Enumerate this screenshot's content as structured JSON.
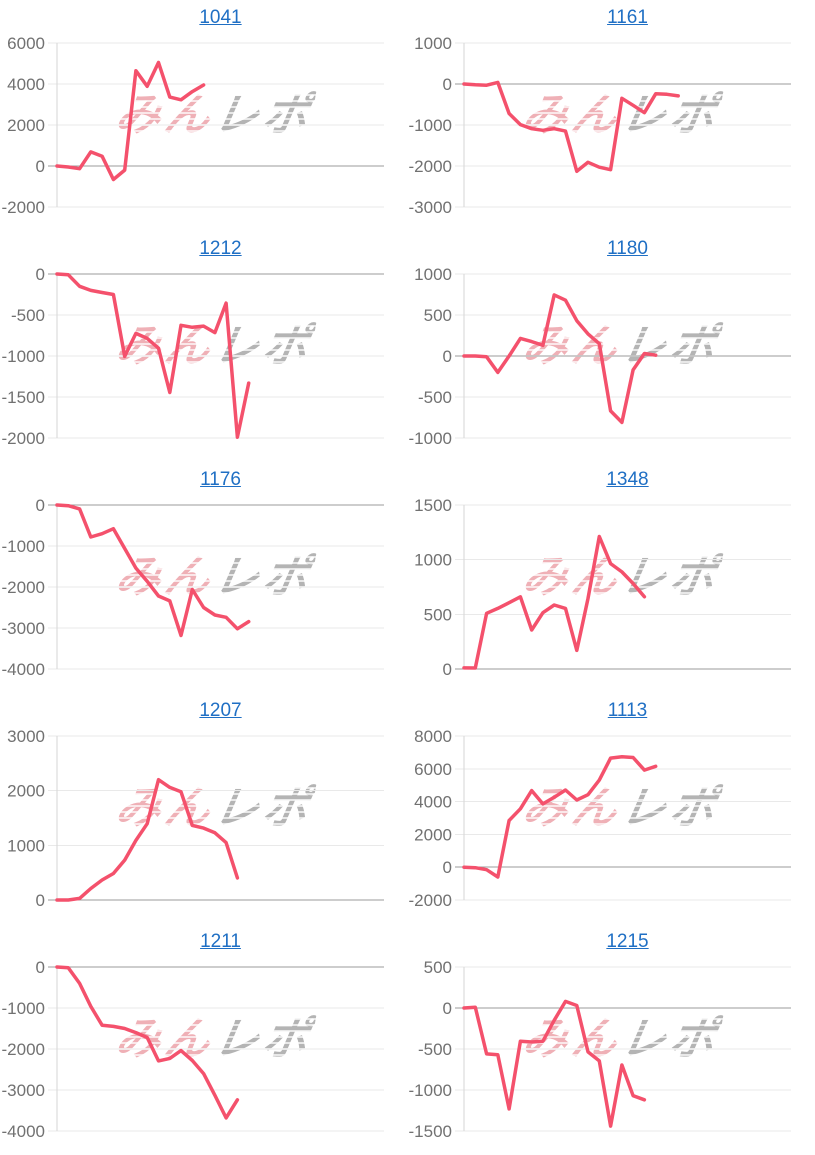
{
  "watermark": {
    "pink": "みん",
    "gray": "レポ"
  },
  "colors": {
    "background": "#ffffff",
    "line": "#f4516c",
    "title_link": "#1f6fc4",
    "grid_line": "#e9e9e9",
    "zero_line": "#9b9b9b",
    "axis_line": "#d6d6d6",
    "tick_label": "#717171",
    "watermark_pink": "#efb0b6",
    "watermark_gray": "#b4b4b4"
  },
  "chart_data": [
    {
      "type": "line",
      "title": "1041",
      "title_is_link": true,
      "grid": true,
      "legend": "none",
      "xlabel": "",
      "ylabel": "",
      "x_slots": 30,
      "ylim": [
        -2000,
        6000
      ],
      "y_ticks": [
        6000,
        4000,
        2000,
        0,
        -2000
      ],
      "values": [
        0,
        -50,
        -130,
        690,
        480,
        -660,
        -200,
        4650,
        3890,
        5050,
        3360,
        3230,
        3630,
        3950
      ]
    },
    {
      "type": "line",
      "title": "1161",
      "title_is_link": true,
      "grid": true,
      "legend": "none",
      "xlabel": "",
      "ylabel": "",
      "x_slots": 30,
      "ylim": [
        -3000,
        1000
      ],
      "y_ticks": [
        1000,
        0,
        -1000,
        -2000,
        -3000
      ],
      "values": [
        0,
        -20,
        -30,
        40,
        -720,
        -990,
        -1090,
        -1130,
        -1090,
        -1150,
        -2130,
        -1910,
        -2030,
        -2090,
        -350,
        -520,
        -700,
        -240,
        -250,
        -290
      ]
    },
    {
      "type": "line",
      "title": "1212",
      "title_is_link": true,
      "grid": true,
      "legend": "none",
      "xlabel": "",
      "ylabel": "",
      "x_slots": 30,
      "ylim": [
        -2000,
        0
      ],
      "y_ticks": [
        0,
        -500,
        -1000,
        -1500,
        -2000
      ],
      "values": [
        0,
        -10,
        -150,
        -200,
        -225,
        -250,
        -1005,
        -725,
        -785,
        -905,
        -1445,
        -625,
        -650,
        -635,
        -715,
        -355,
        -1990,
        -1330
      ]
    },
    {
      "type": "line",
      "title": "1180",
      "title_is_link": true,
      "grid": true,
      "legend": "none",
      "xlabel": "",
      "ylabel": "",
      "x_slots": 30,
      "ylim": [
        -1000,
        1000
      ],
      "y_ticks": [
        1000,
        500,
        0,
        -500,
        -1000
      ],
      "values": [
        0,
        0,
        -10,
        -200,
        0,
        215,
        175,
        130,
        745,
        680,
        430,
        270,
        150,
        -670,
        -810,
        -170,
        30,
        10
      ]
    },
    {
      "type": "line",
      "title": "1176",
      "title_is_link": true,
      "grid": true,
      "legend": "none",
      "xlabel": "",
      "ylabel": "",
      "x_slots": 30,
      "ylim": [
        -4000,
        0
      ],
      "y_ticks": [
        0,
        -1000,
        -2000,
        -3000,
        -4000
      ],
      "values": [
        0,
        -16,
        -96,
        -780,
        -700,
        -577,
        -1060,
        -1540,
        -1860,
        -2220,
        -2340,
        -3180,
        -2060,
        -2500,
        -2684,
        -2740,
        -3020,
        -2845
      ]
    },
    {
      "type": "line",
      "title": "1348",
      "title_is_link": true,
      "grid": true,
      "legend": "none",
      "xlabel": "",
      "ylabel": "",
      "x_slots": 30,
      "ylim": [
        0,
        1500
      ],
      "y_ticks": [
        1500,
        1000,
        500,
        0
      ],
      "values": [
        10,
        9,
        509,
        554,
        606,
        660,
        357,
        515,
        585,
        554,
        170,
        645,
        1212,
        964,
        888,
        782,
        660
      ]
    },
    {
      "type": "line",
      "title": "1207",
      "title_is_link": true,
      "grid": true,
      "legend": "none",
      "xlabel": "",
      "ylabel": "",
      "x_slots": 30,
      "ylim": [
        0,
        3000
      ],
      "y_ticks": [
        3000,
        2000,
        1000,
        0
      ],
      "values": [
        0,
        0,
        30,
        210,
        365,
        485,
        730,
        1090,
        1395,
        2200,
        2060,
        1980,
        1365,
        1315,
        1230,
        1050,
        405
      ]
    },
    {
      "type": "line",
      "title": "1113",
      "title_is_link": true,
      "grid": true,
      "legend": "none",
      "xlabel": "",
      "ylabel": "",
      "x_slots": 30,
      "ylim": [
        -2000,
        8000
      ],
      "y_ticks": [
        8000,
        6000,
        4000,
        2000,
        0,
        -2000
      ],
      "values": [
        0,
        -30,
        -150,
        -600,
        2850,
        3560,
        4670,
        3860,
        4260,
        4710,
        4100,
        4420,
        5310,
        6650,
        6730,
        6690,
        5920,
        6150
      ]
    },
    {
      "type": "line",
      "title": "1211",
      "title_is_link": true,
      "grid": true,
      "legend": "none",
      "xlabel": "",
      "ylabel": "",
      "x_slots": 30,
      "ylim": [
        -4000,
        0
      ],
      "y_ticks": [
        0,
        -1000,
        -2000,
        -3000,
        -4000
      ],
      "values": [
        0,
        -20,
        -400,
        -960,
        -1420,
        -1450,
        -1500,
        -1600,
        -1720,
        -2290,
        -2230,
        -2040,
        -2280,
        -2600,
        -3130,
        -3680,
        -3240
      ]
    },
    {
      "type": "line",
      "title": "1215",
      "title_is_link": true,
      "grid": true,
      "legend": "none",
      "xlabel": "",
      "ylabel": "",
      "x_slots": 30,
      "ylim": [
        -1500,
        500
      ],
      "y_ticks": [
        500,
        0,
        -500,
        -1000,
        -1500
      ],
      "values": [
        0,
        10,
        -560,
        -570,
        -1230,
        -405,
        -415,
        -405,
        -150,
        80,
        30,
        -535,
        -645,
        -1440,
        -695,
        -1070,
        -1120
      ]
    }
  ]
}
